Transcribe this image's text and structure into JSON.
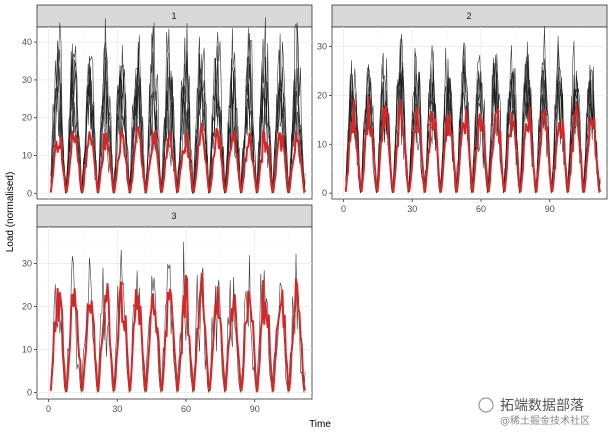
{
  "chart_data": {
    "type": "line",
    "xlabel": "Time",
    "ylabel": "Load (normalised)",
    "x_ticks": [
      0,
      30,
      60,
      90
    ],
    "xlim": [
      -5,
      115
    ],
    "panels": [
      {
        "strip": "1",
        "ylim": [
          -1.5,
          44
        ],
        "y_ticks": [
          0,
          10,
          20,
          30,
          40
        ],
        "peak_actual": 40,
        "peak_forecast": 18,
        "n_actual_series": 6
      },
      {
        "strip": "2",
        "ylim": [
          -1.2,
          34
        ],
        "y_ticks": [
          0,
          10,
          20,
          30
        ],
        "peak_actual": 28,
        "peak_forecast": 19,
        "n_actual_series": 6
      },
      {
        "strip": "3",
        "ylim": [
          -1.5,
          38.5
        ],
        "y_ticks": [
          0,
          10,
          20,
          30
        ],
        "peak_actual": 36,
        "peak_forecast": 27,
        "n_actual_series": 1
      }
    ],
    "series": [
      {
        "role": "actual",
        "color": "#1a1a1a"
      },
      {
        "role": "forecast",
        "color": "#d62728"
      }
    ],
    "grid": true
  },
  "watermark": {
    "main": "拓端数据部落",
    "sub": "@稀土掘金技术社区"
  }
}
